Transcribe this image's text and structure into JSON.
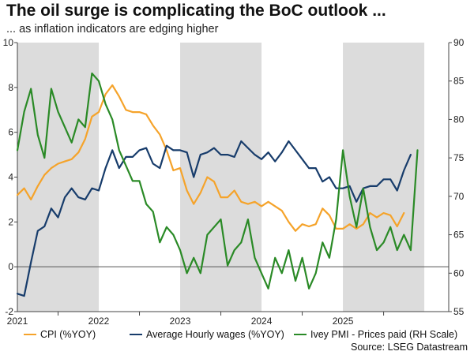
{
  "chart_data": {
    "type": "line",
    "title": "The oil surge is complicating the BoC outlook ...",
    "subtitle": "... as inflation indicators are edging higher",
    "source": "Source: LSEG Datastream",
    "left_axis": {
      "range": [
        -2,
        10
      ],
      "ticks": [
        "-2",
        "0",
        "2",
        "4",
        "6",
        "8",
        "10"
      ]
    },
    "right_axis": {
      "range": [
        55,
        90
      ],
      "ticks": [
        "55",
        "60",
        "65",
        "70",
        "75",
        "80",
        "85",
        "90"
      ]
    },
    "x_axis": {
      "range": [
        2020.5,
        2025.8
      ],
      "year_labels": [
        "2021",
        "2022",
        "2023",
        "2024",
        "2025"
      ]
    },
    "shaded_bands": [
      [
        2020.5,
        2021.5
      ],
      [
        2022.5,
        2023.5
      ],
      [
        2024.5,
        2025.5
      ]
    ],
    "grid": false,
    "legend_position": "bottom",
    "colors": {
      "cpi": "#f5a32a",
      "wages": "#173c6b",
      "ivey": "#2a8a26",
      "shade": "#dcdcdc"
    },
    "series": [
      {
        "name": "CPI (%YOY)",
        "axis": "left",
        "color": "#f5a32a",
        "x_start": 2020.5,
        "x_step": 0.08333,
        "values": [
          3.2,
          3.5,
          3.0,
          3.6,
          4.1,
          4.4,
          4.6,
          4.7,
          4.8,
          5.1,
          5.7,
          6.7,
          6.9,
          7.7,
          8.1,
          7.6,
          7.0,
          6.9,
          6.9,
          6.8,
          6.3,
          5.9,
          5.2,
          4.3,
          4.4,
          3.4,
          2.8,
          3.3,
          4.0,
          3.8,
          3.1,
          3.1,
          3.4,
          2.9,
          2.8,
          2.9,
          2.7,
          2.9,
          2.7,
          2.5,
          2.0,
          1.6,
          1.9,
          1.8,
          1.9,
          2.6,
          2.3,
          1.7,
          1.7,
          1.9,
          1.7,
          1.9,
          2.4,
          2.2,
          2.4,
          2.3,
          1.8,
          2.4
        ]
      },
      {
        "name": "Average Hourly wages (%YOY)",
        "axis": "left",
        "color": "#173c6b",
        "x_start": 2020.5,
        "x_step": 0.08333,
        "values": [
          -1.2,
          -1.3,
          0.2,
          1.6,
          1.8,
          2.6,
          2.2,
          3.1,
          3.5,
          3.1,
          3.0,
          3.5,
          3.4,
          4.4,
          5.2,
          4.4,
          4.9,
          4.9,
          5.2,
          5.3,
          4.6,
          4.4,
          5.4,
          5.2,
          5.2,
          5.1,
          4.0,
          5.0,
          5.1,
          5.3,
          5.0,
          5.0,
          4.9,
          5.6,
          5.3,
          5.0,
          4.8,
          5.1,
          4.7,
          5.1,
          5.6,
          5.2,
          4.8,
          4.4,
          4.4,
          3.8,
          4.0,
          3.5,
          3.5,
          3.6,
          2.9,
          3.5,
          3.6,
          3.6,
          3.9,
          3.9,
          3.4,
          4.3,
          5.0
        ]
      },
      {
        "name": "Ivey PMI - Prices paid (RH Scale)",
        "axis": "right",
        "color": "#2a8a26",
        "x_start": 2020.5,
        "x_step": 0.08333,
        "values": [
          76,
          81,
          84,
          78,
          75,
          84,
          81,
          79,
          77,
          80,
          79,
          86,
          85,
          82,
          80,
          76,
          74,
          72,
          72,
          69,
          68,
          64,
          66,
          65,
          63,
          60,
          62,
          60,
          65,
          66,
          67,
          61,
          63,
          64,
          67,
          62,
          60,
          58,
          62,
          60,
          63,
          59,
          62,
          58,
          60,
          64,
          62,
          67,
          76,
          70,
          66,
          71,
          66,
          63,
          64,
          66,
          63,
          65,
          63,
          76
        ]
      }
    ]
  }
}
